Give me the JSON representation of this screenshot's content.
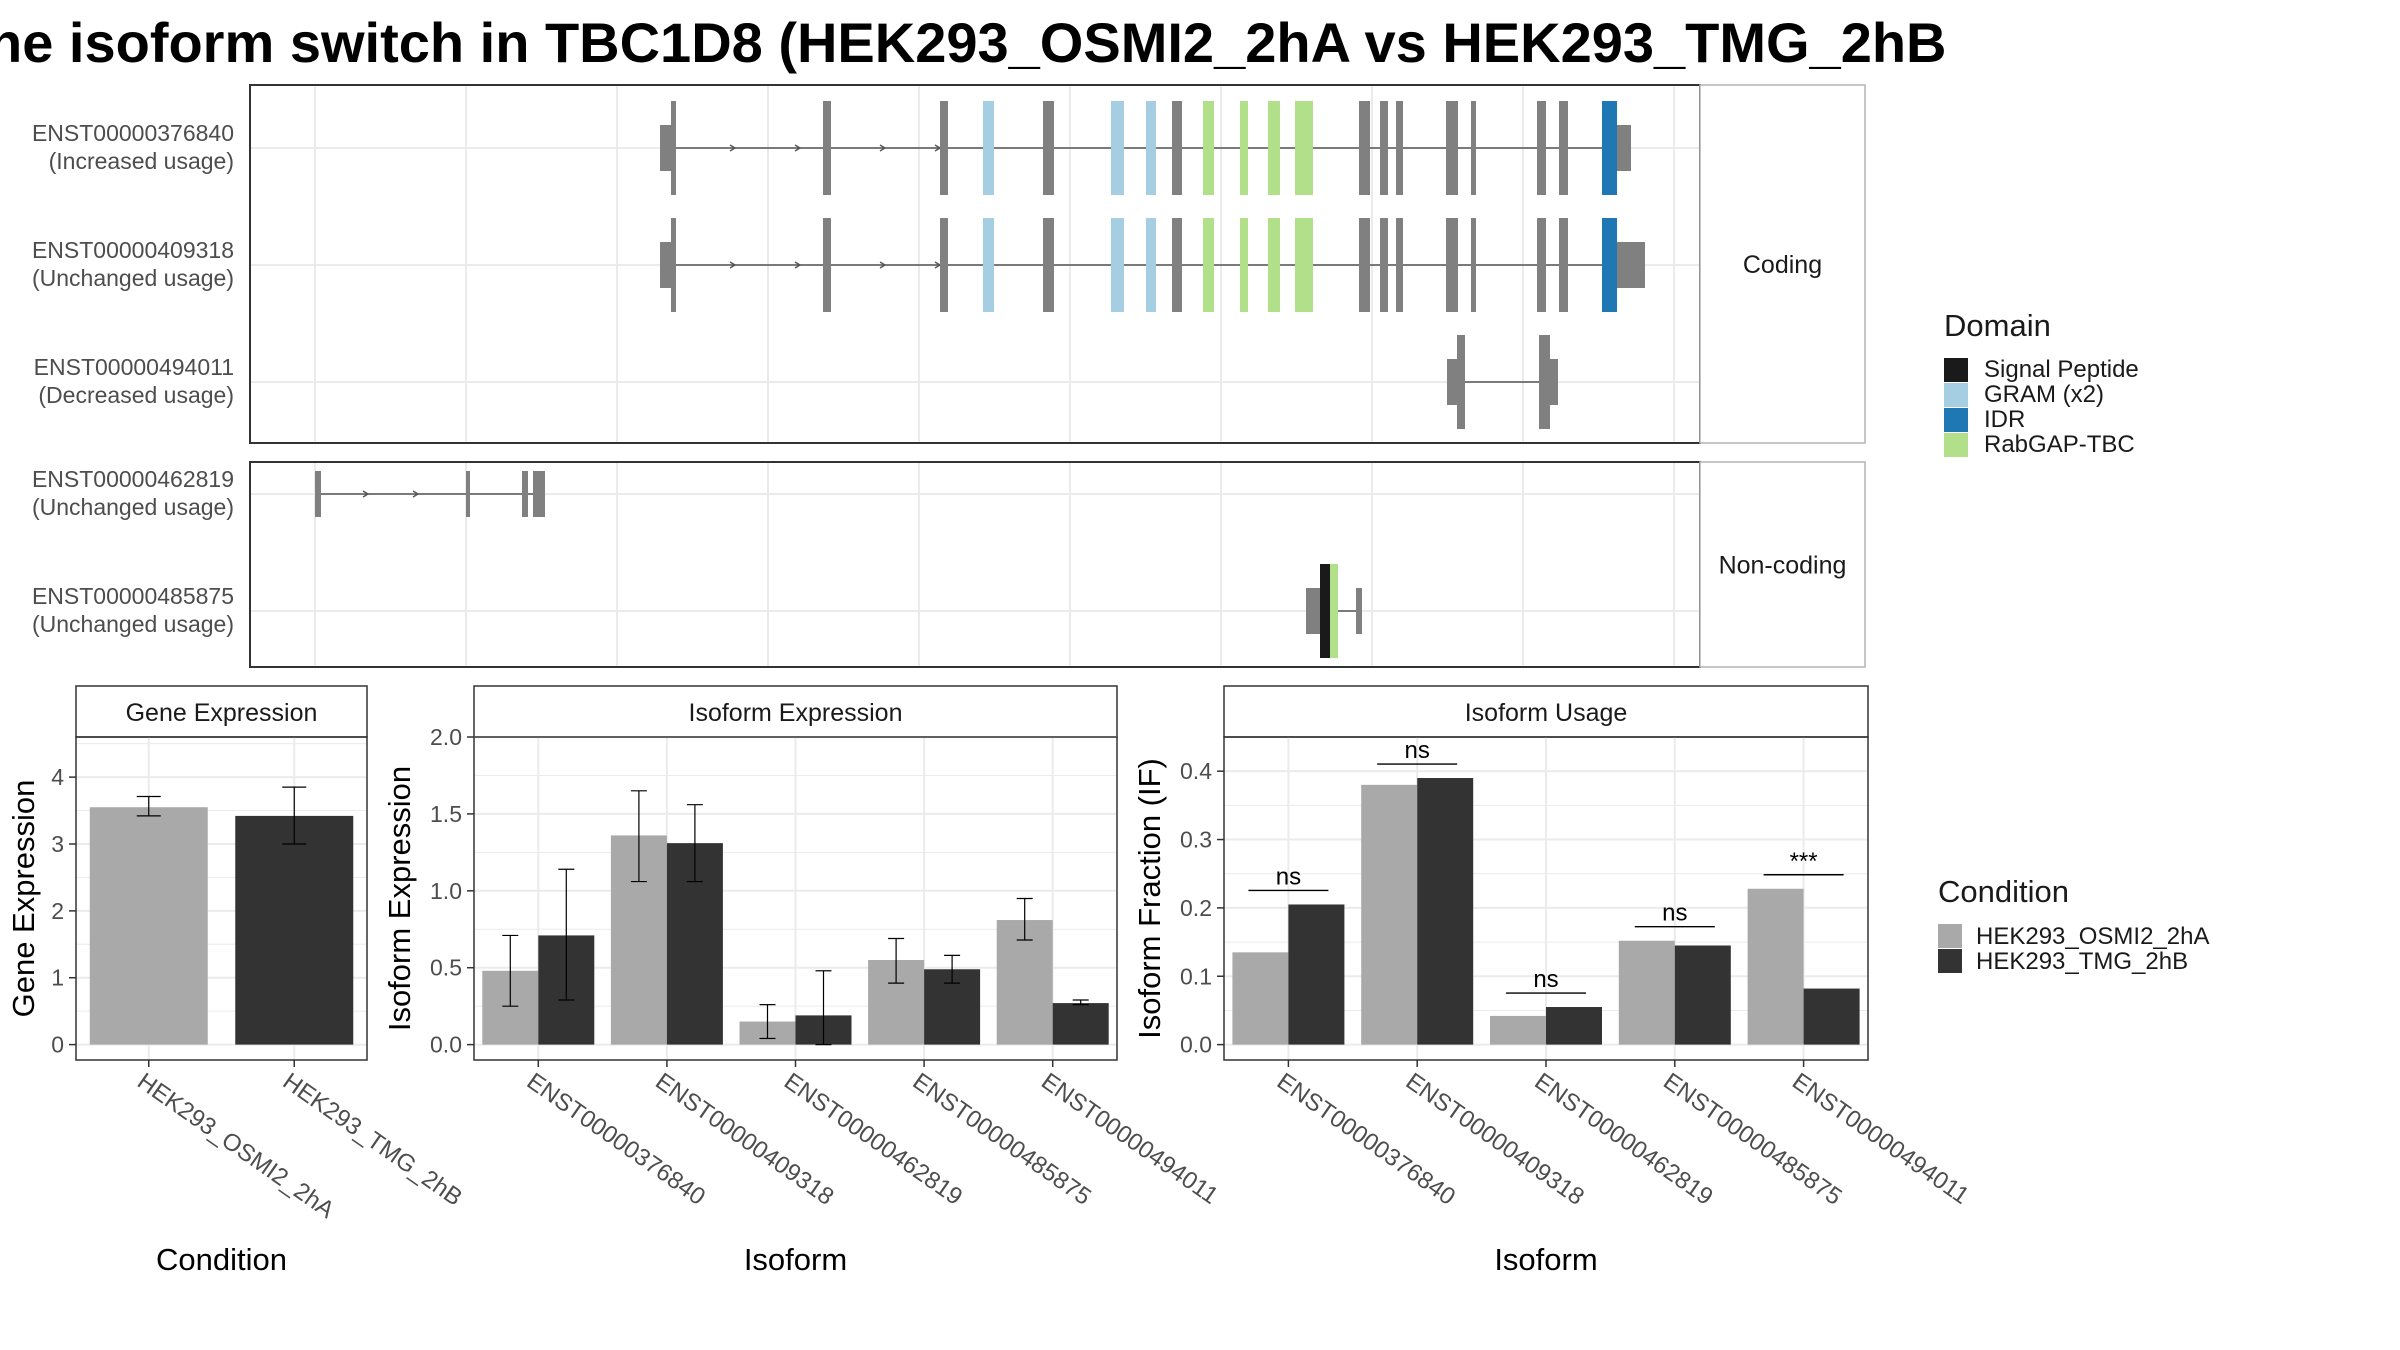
{
  "title": "he isoform switch in TBC1D8 (HEK293_OSMI2_2hA vs HEK293_TMG_2hB",
  "colors": {
    "exon": "#808080",
    "signal_peptide": "#1a1a1a",
    "gram": "#a6cee3",
    "idr": "#1f78b4",
    "rabgap": "#b2df8a",
    "cond_a": "#a9a9a9",
    "cond_b": "#333333"
  },
  "structure_panels": [
    {
      "strip": "Coding",
      "transcripts": [
        {
          "id": "ENST00000376840",
          "status": "(Increased usage)"
        },
        {
          "id": "ENST00000409318",
          "status": "(Unchanged usage)"
        },
        {
          "id": "ENST00000494011",
          "status": "(Decreased usage)"
        }
      ]
    },
    {
      "strip": "Non-coding",
      "transcripts": [
        {
          "id": "ENST00000462819",
          "status": "(Unchanged usage)"
        },
        {
          "id": "ENST00000485875",
          "status": "(Unchanged usage)"
        }
      ]
    }
  ],
  "domain_legend": {
    "title": "Domain",
    "items": [
      {
        "label": "Signal Peptide",
        "color": "#1a1a1a"
      },
      {
        "label": "GRAM (x2)",
        "color": "#a6cee3"
      },
      {
        "label": "IDR",
        "color": "#1f78b4"
      },
      {
        "label": "RabGAP-TBC",
        "color": "#b2df8a"
      }
    ]
  },
  "condition_legend": {
    "title": "Condition",
    "items": [
      {
        "label": "HEK293_OSMI2_2hA",
        "color": "#a9a9a9"
      },
      {
        "label": "HEK293_TMG_2hB",
        "color": "#333333"
      }
    ]
  },
  "chart_data": [
    {
      "type": "bar",
      "strip": "Gene Expression",
      "xlabel": "Condition",
      "ylabel": "Gene Expression",
      "ylim": [
        0,
        4.6
      ],
      "yticks": [
        "0",
        "1",
        "2",
        "3",
        "4"
      ],
      "categories": [
        "HEK293_OSMI2_2hA",
        "HEK293_TMG_2hB"
      ],
      "values": [
        3.55,
        3.42
      ],
      "error": [
        [
          3.42,
          3.71
        ],
        [
          3.0,
          3.85
        ]
      ]
    },
    {
      "type": "bar",
      "strip": "Isoform Expression",
      "xlabel": "Isoform",
      "ylabel": "Isoform Expression",
      "ylim": [
        0,
        2.0
      ],
      "yticks": [
        "0.0",
        "0.5",
        "1.0",
        "1.5",
        "2.0"
      ],
      "categories": [
        "ENST00000376840",
        "ENST00000409318",
        "ENST00000462819",
        "ENST00000485875",
        "ENST00000494011"
      ],
      "series": [
        {
          "name": "HEK293_OSMI2_2hA",
          "values": [
            0.48,
            1.36,
            0.15,
            0.55,
            0.81
          ],
          "error": [
            [
              0.25,
              0.71
            ],
            [
              1.06,
              1.65
            ],
            [
              0.04,
              0.26
            ],
            [
              0.4,
              0.69
            ],
            [
              0.68,
              0.95
            ]
          ]
        },
        {
          "name": "HEK293_TMG_2hB",
          "values": [
            0.71,
            1.31,
            0.19,
            0.49,
            0.27
          ],
          "error": [
            [
              0.29,
              1.14
            ],
            [
              1.06,
              1.56
            ],
            [
              0.0,
              0.48
            ],
            [
              0.4,
              0.58
            ],
            [
              0.26,
              0.29
            ]
          ]
        }
      ]
    },
    {
      "type": "bar",
      "strip": "Isoform Usage",
      "xlabel": "Isoform",
      "ylabel": "Isoform Fraction (IF)",
      "ylim": [
        0,
        0.45
      ],
      "yticks": [
        "0.0",
        "0.1",
        "0.2",
        "0.3",
        "0.4"
      ],
      "categories": [
        "ENST00000376840",
        "ENST00000409318",
        "ENST00000462819",
        "ENST00000485875",
        "ENST00000494011"
      ],
      "series": [
        {
          "name": "HEK293_OSMI2_2hA",
          "values": [
            0.135,
            0.38,
            0.042,
            0.152,
            0.228
          ]
        },
        {
          "name": "HEK293_TMG_2hB",
          "values": [
            0.205,
            0.39,
            0.055,
            0.145,
            0.082
          ]
        }
      ],
      "significance": [
        "ns",
        "ns",
        "ns",
        "ns",
        "***"
      ]
    }
  ]
}
